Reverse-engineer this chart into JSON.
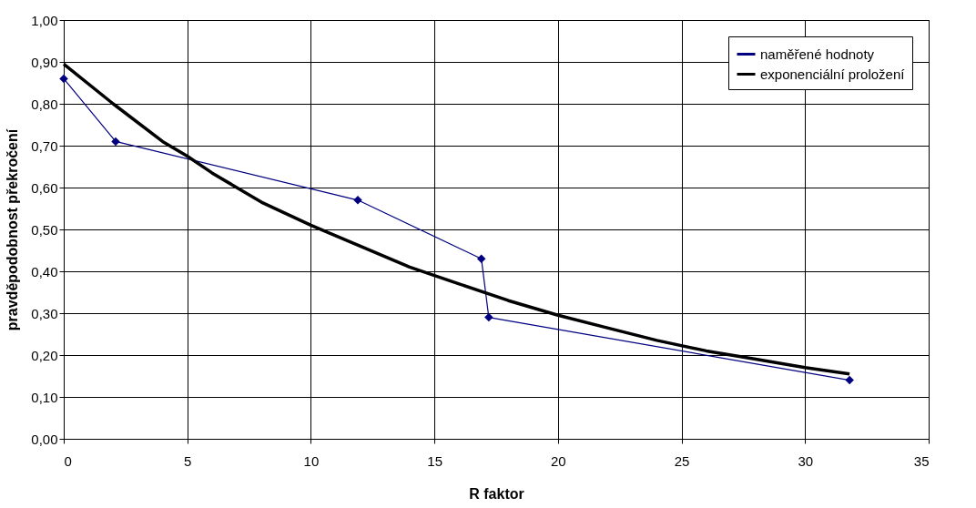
{
  "chart_data": {
    "type": "line",
    "xlabel": "R faktor",
    "ylabel": "pravděpodobnost překročení",
    "xlim": [
      0,
      35
    ],
    "xticks": [
      0,
      5,
      10,
      15,
      20,
      25,
      30,
      35
    ],
    "ylim": [
      0,
      1
    ],
    "yticks": [
      {
        "value": 0,
        "label": "0,00"
      },
      {
        "value": 0.1,
        "label": "0,10"
      },
      {
        "value": 0.2,
        "label": "0,20"
      },
      {
        "value": 0.3,
        "label": "0,30"
      },
      {
        "value": 0.4,
        "label": "0,40"
      },
      {
        "value": 0.5,
        "label": "0,50"
      },
      {
        "value": 0.6,
        "label": "0,60"
      },
      {
        "value": 0.7,
        "label": "0,70"
      },
      {
        "value": 0.8,
        "label": "0,80"
      },
      {
        "value": 0.9,
        "label": "0,90"
      },
      {
        "value": 1,
        "label": "1,00"
      }
    ],
    "grid": true,
    "legend": "top right",
    "series": [
      {
        "name": "naměřené hodnoty",
        "color": "#000080",
        "marker": "diamond",
        "x": [
          0,
          2.1,
          11.9,
          16.9,
          17.2,
          31.8
        ],
        "values": [
          0.86,
          0.71,
          0.57,
          0.43,
          0.29,
          0.14
        ]
      },
      {
        "name": "exponenciální proložení",
        "color": "#000000",
        "marker": "none",
        "x": [
          0,
          2,
          4,
          5,
          6,
          8,
          10,
          12,
          14,
          16,
          18,
          20,
          22,
          24,
          26,
          28,
          30,
          31.8
        ],
        "values": [
          0.895,
          0.8,
          0.71,
          0.675,
          0.635,
          0.565,
          0.51,
          0.46,
          0.41,
          0.37,
          0.33,
          0.295,
          0.265,
          0.235,
          0.21,
          0.19,
          0.17,
          0.155
        ]
      }
    ]
  }
}
